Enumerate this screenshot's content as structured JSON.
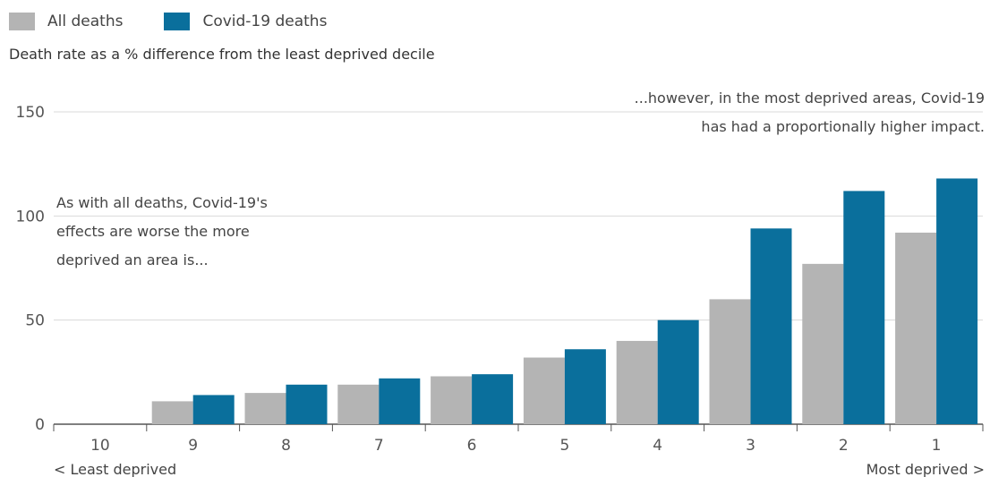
{
  "colors": {
    "all_deaths": "#b4b4b4",
    "covid_deaths": "#0a6f9c",
    "gridline": "#d9d9d9",
    "axis": "#555555"
  },
  "legend": {
    "all_deaths_label": "All deaths",
    "covid_label": "Covid-19 deaths"
  },
  "subtitle": "Death rate as a % difference from the least deprived decile",
  "chart_data": {
    "type": "bar",
    "categories": [
      "10",
      "9",
      "8",
      "7",
      "6",
      "5",
      "4",
      "3",
      "2",
      "1"
    ],
    "series": [
      {
        "name": "All deaths",
        "values": [
          0,
          11,
          15,
          19,
          23,
          32,
          40,
          60,
          77,
          92
        ]
      },
      {
        "name": "Covid-19 deaths",
        "values": [
          0,
          14,
          19,
          22,
          24,
          36,
          50,
          94,
          112,
          118
        ]
      }
    ],
    "ylim": [
      0,
      150
    ],
    "yticks": [
      0,
      50,
      100,
      150
    ],
    "grid": true,
    "x_edge_labels": {
      "left": "< Least deprived",
      "right": "Most deprived >"
    },
    "annotations": [
      {
        "id": "left",
        "lines": [
          "As with all deaths, Covid-19's",
          "effects are worse the more",
          "deprived an area is..."
        ]
      },
      {
        "id": "right",
        "lines": [
          "...however, in the most deprived areas, Covid-19",
          "has had a proportionally higher impact."
        ]
      }
    ]
  }
}
